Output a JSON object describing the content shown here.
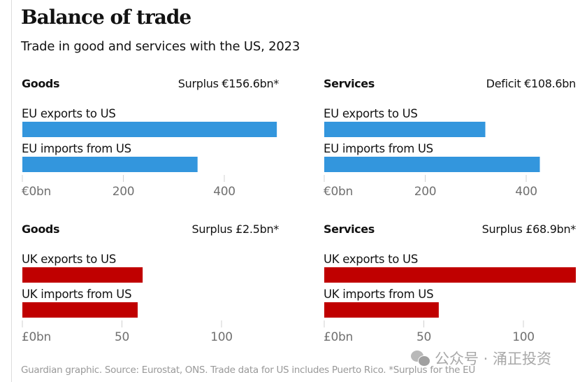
{
  "title": "Balance of trade",
  "subtitle": "Trade in good and services with the US, 2023",
  "source": "Guardian graphic. Source: Eurostat, ONS. Trade data for US includes Puerto Rico. *Surplus for the EU",
  "watermark": {
    "icon": "wechat-icon",
    "text": "公众号 · 涌正投资"
  },
  "colors": {
    "eu": "#3396dd",
    "uk": "#c00000",
    "tick": "#d0d0d0",
    "tick_label": "#707070"
  },
  "chart_data": [
    {
      "type": "bar",
      "orientation": "horizontal",
      "title": "Goods",
      "annotation": "Surplus €156.6bn*",
      "categories": [
        "EU exports to US",
        "EU imports from US"
      ],
      "values": [
        504,
        347
      ],
      "unit": "€bn",
      "xlim": [
        0,
        504
      ],
      "ticks": [
        0,
        200,
        400
      ],
      "tick_labels": [
        "€0bn",
        "200",
        "400"
      ],
      "color_key": "eu",
      "grid": false
    },
    {
      "type": "bar",
      "orientation": "horizontal",
      "title": "Services",
      "annotation": "Deficit €108.6bn",
      "categories": [
        "EU exports to US",
        "EU imports from US"
      ],
      "values": [
        319,
        427
      ],
      "unit": "€bn",
      "xlim": [
        0,
        504
      ],
      "ticks": [
        0,
        200,
        400
      ],
      "tick_labels": [
        "€0bn",
        "200",
        "400"
      ],
      "color_key": "eu",
      "grid": false
    },
    {
      "type": "bar",
      "orientation": "horizontal",
      "title": "Goods",
      "annotation": "Surplus £2.5bn*",
      "categories": [
        "UK exports to US",
        "UK imports from US"
      ],
      "values": [
        60.4,
        57.9
      ],
      "unit": "£bn",
      "xlim": [
        0,
        127
      ],
      "ticks": [
        0,
        50,
        100
      ],
      "tick_labels": [
        "£0bn",
        "50",
        "100"
      ],
      "color_key": "uk",
      "grid": false
    },
    {
      "type": "bar",
      "orientation": "horizontal",
      "title": "Services",
      "annotation": "Surplus £68.9bn*",
      "categories": [
        "UK exports to US",
        "UK imports from US"
      ],
      "values": [
        126.4,
        57.5
      ],
      "unit": "£bn",
      "xlim": [
        0,
        127
      ],
      "ticks": [
        0,
        50,
        100
      ],
      "tick_labels": [
        "£0bn",
        "50",
        "100"
      ],
      "color_key": "uk",
      "grid": false
    }
  ]
}
